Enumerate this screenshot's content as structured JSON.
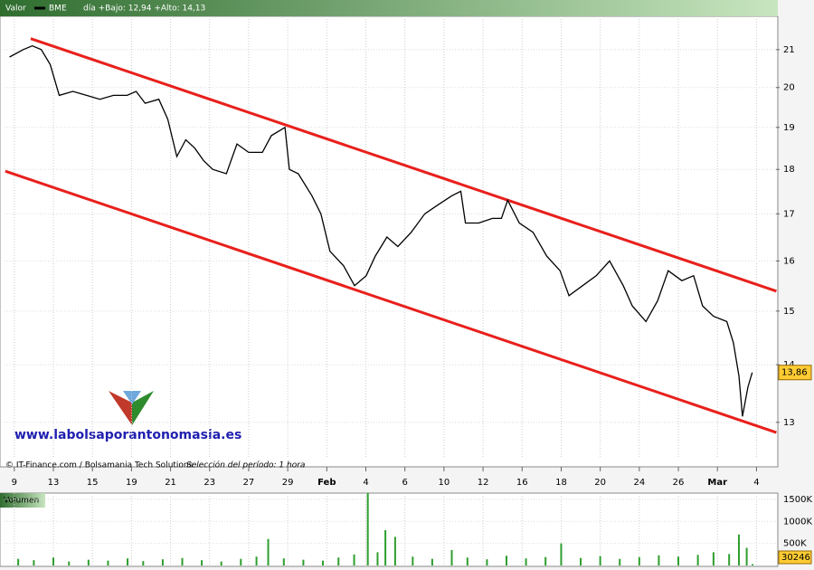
{
  "header": {
    "label": "Valor",
    "symbol_text": "BME",
    "range": "día +Bajo: 12,94 +Alto: 14,13"
  },
  "footer": {
    "source": "© IT-Finance.com / Bolsamania Tech Solutions",
    "period": "Selección del período: 1 hora"
  },
  "watermark": "www.labolsaporantonomasia.es",
  "chart_data": [
    {
      "type": "line",
      "log_scale": true,
      "grid": true,
      "series": [
        {
          "name": "BME",
          "color": "#000000",
          "x": [
            -0.12,
            0.23,
            0.46,
            0.69,
            0.92,
            1.15,
            1.5,
            1.85,
            2.19,
            2.54,
            2.89,
            3.12,
            3.35,
            3.7,
            3.93,
            4.16,
            4.39,
            4.62,
            4.85,
            5.08,
            5.43,
            5.7,
            6.0,
            6.35,
            6.58,
            6.93,
            7.04,
            7.27,
            7.62,
            7.85,
            8.08,
            8.43,
            8.71,
            9.01,
            9.24,
            9.54,
            9.82,
            10.16,
            10.51,
            10.85,
            11.2,
            11.43,
            11.55,
            11.89,
            12.24,
            12.47,
            12.63,
            12.93,
            13.28,
            13.63,
            13.97,
            14.2,
            14.55,
            14.9,
            15.24,
            15.59,
            15.82,
            16.17,
            16.47,
            16.74,
            17.09,
            17.39,
            17.62,
            17.9,
            18.24,
            18.41,
            18.55,
            18.64,
            18.78,
            18.89
          ],
          "values": [
            20.8,
            21.0,
            21.1,
            21.0,
            20.6,
            19.8,
            19.9,
            19.8,
            19.7,
            19.8,
            19.8,
            19.9,
            19.6,
            19.7,
            19.2,
            18.3,
            18.7,
            18.5,
            18.2,
            18.0,
            17.9,
            18.6,
            18.4,
            18.4,
            18.8,
            19.0,
            18.0,
            17.9,
            17.4,
            17.0,
            16.2,
            15.9,
            15.5,
            15.7,
            16.1,
            16.5,
            16.3,
            16.6,
            17.0,
            17.2,
            17.4,
            17.5,
            16.8,
            16.8,
            16.9,
            16.9,
            17.3,
            16.8,
            16.6,
            16.1,
            15.8,
            15.3,
            15.5,
            15.7,
            16.0,
            15.5,
            15.1,
            14.8,
            15.2,
            15.8,
            15.6,
            15.7,
            15.1,
            14.9,
            14.8,
            14.4,
            13.8,
            13.1,
            13.6,
            13.86
          ]
        }
      ],
      "trend_lines": [
        {
          "color": "#e8201c",
          "x": [
            0.42,
            19.51
          ],
          "values": [
            21.3,
            15.39
          ]
        },
        {
          "color": "#e8201c",
          "x": [
            -0.23,
            19.51
          ],
          "values": [
            17.96,
            12.83
          ]
        }
      ],
      "last_value": 13.86,
      "last_value_label": "13,86",
      "xlim": [
        -0.25,
        19.5
      ],
      "xticks": [
        {
          "value": 0,
          "label": "9"
        },
        {
          "value": 1,
          "label": "13"
        },
        {
          "value": 2,
          "label": "15"
        },
        {
          "value": 3,
          "label": "19"
        },
        {
          "value": 4,
          "label": "21"
        },
        {
          "value": 5,
          "label": "23"
        },
        {
          "value": 6,
          "label": "27"
        },
        {
          "value": 7,
          "label": "29"
        },
        {
          "value": 8,
          "label": "Feb"
        },
        {
          "value": 9,
          "label": "4"
        },
        {
          "value": 10,
          "label": "6"
        },
        {
          "value": 11,
          "label": "10"
        },
        {
          "value": 12,
          "label": "12"
        },
        {
          "value": 13,
          "label": "16"
        },
        {
          "value": 14,
          "label": "18"
        },
        {
          "value": 15,
          "label": "20"
        },
        {
          "value": 16,
          "label": "24"
        },
        {
          "value": 17,
          "label": "26"
        },
        {
          "value": 18,
          "label": "Mar"
        },
        {
          "value": 19,
          "label": "4"
        }
      ],
      "ylim": [
        12.29,
        21.92
      ],
      "yticks": [
        13,
        14,
        15,
        16,
        17,
        18,
        19,
        20,
        21
      ]
    },
    {
      "type": "bar",
      "title": "Volumen",
      "color": "#2e9e2e",
      "x": [
        0.1,
        0.5,
        1.0,
        1.4,
        1.9,
        2.4,
        2.9,
        3.3,
        3.8,
        4.3,
        4.8,
        5.3,
        5.8,
        6.2,
        6.5,
        6.9,
        7.4,
        7.9,
        8.3,
        8.7,
        9.05,
        9.3,
        9.5,
        9.75,
        10.2,
        10.7,
        11.2,
        11.6,
        12.1,
        12.6,
        13.1,
        13.6,
        14.0,
        14.5,
        15.0,
        15.5,
        16.0,
        16.5,
        17.0,
        17.5,
        17.9,
        18.3,
        18.55,
        18.75,
        18.9
      ],
      "values": [
        150000,
        120000,
        180000,
        90000,
        130000,
        110000,
        160000,
        100000,
        140000,
        170000,
        120000,
        90000,
        150000,
        200000,
        600000,
        160000,
        130000,
        110000,
        180000,
        250000,
        1650000,
        300000,
        800000,
        650000,
        200000,
        150000,
        350000,
        180000,
        140000,
        220000,
        160000,
        190000,
        500000,
        170000,
        210000,
        150000,
        190000,
        230000,
        200000,
        240000,
        300000,
        260000,
        700000,
        400000,
        30246
      ],
      "last_value": 30246,
      "ylim": [
        0,
        1600000
      ],
      "yticks": [
        {
          "value": 500000,
          "label": "500K"
        },
        {
          "value": 1000000,
          "label": "1000K"
        },
        {
          "value": 1500000,
          "label": "1500K"
        }
      ]
    }
  ]
}
